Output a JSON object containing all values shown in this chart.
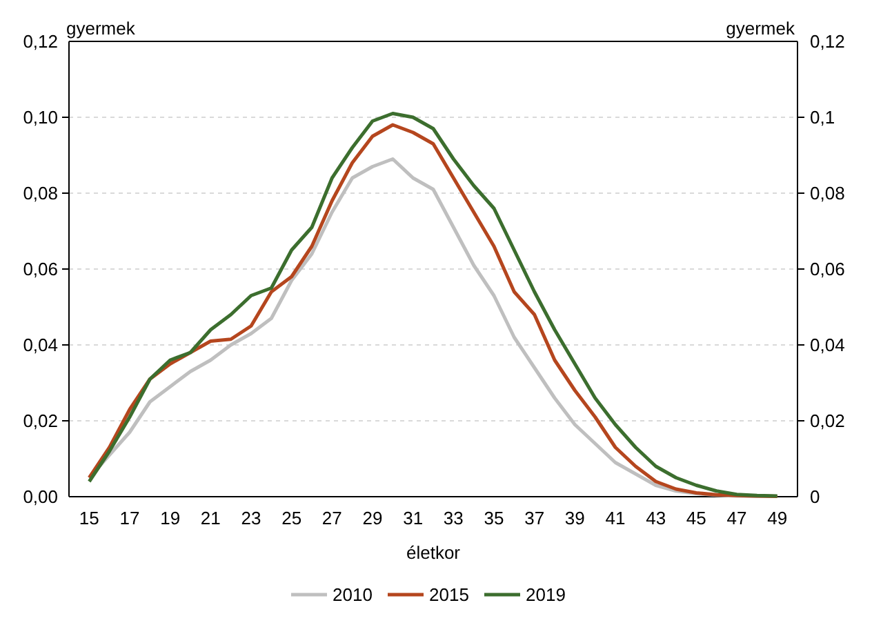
{
  "chart_data": {
    "type": "line",
    "xlabel": "életkor",
    "ylabel": "gyermek",
    "y2label": "gyermek",
    "x": [
      15,
      16,
      17,
      18,
      19,
      20,
      21,
      22,
      23,
      24,
      25,
      26,
      27,
      28,
      29,
      30,
      31,
      32,
      33,
      34,
      35,
      36,
      37,
      38,
      39,
      40,
      41,
      42,
      43,
      44,
      45,
      46,
      47,
      48,
      49
    ],
    "xlim": [
      14,
      50
    ],
    "xticks": [
      15,
      17,
      19,
      21,
      23,
      25,
      27,
      29,
      31,
      33,
      35,
      37,
      39,
      41,
      43,
      45,
      47,
      49
    ],
    "ylim": [
      0,
      0.12
    ],
    "yticks": [
      {
        "value": 0,
        "label": "0,00"
      },
      {
        "value": 0.02,
        "label": "0,02"
      },
      {
        "value": 0.04,
        "label": "0,04"
      },
      {
        "value": 0.06,
        "label": "0,06"
      },
      {
        "value": 0.08,
        "label": "0,08"
      },
      {
        "value": 0.1,
        "label": "0,10"
      },
      {
        "value": 0.12,
        "label": "0,12"
      }
    ],
    "y2lim": [
      0,
      0.12
    ],
    "y2ticks": [
      0,
      {
        "value": 0.02,
        "label": "0,02"
      },
      {
        "value": 0.04,
        "label": "0,04"
      },
      {
        "value": 0.06,
        "label": "0,06"
      },
      {
        "value": 0.08,
        "label": "0,08"
      },
      {
        "value": 0.1,
        "label": "0,1"
      },
      {
        "value": 0.12,
        "label": "0,12"
      }
    ],
    "grid": "y",
    "legend": "bottom",
    "line_style": "solid",
    "marker": "none",
    "series": [
      {
        "name": "2010",
        "color": "#bfbfbf",
        "values": [
          0.005,
          0.011,
          0.017,
          0.025,
          0.029,
          0.033,
          0.036,
          0.04,
          0.043,
          0.047,
          0.057,
          0.064,
          0.075,
          0.084,
          0.087,
          0.089,
          0.084,
          0.081,
          0.071,
          0.061,
          0.053,
          0.042,
          0.034,
          0.026,
          0.019,
          0.014,
          0.009,
          0.006,
          0.003,
          0.0015,
          0.0008,
          0.0004,
          0.0002,
          0.0001,
          0.0001
        ]
      },
      {
        "name": "2015",
        "color": "#b5461e",
        "values": [
          0.005,
          0.013,
          0.023,
          0.031,
          0.035,
          0.038,
          0.041,
          0.0415,
          0.045,
          0.054,
          0.058,
          0.066,
          0.078,
          0.088,
          0.095,
          0.098,
          0.096,
          0.093,
          0.084,
          0.075,
          0.066,
          0.054,
          0.048,
          0.036,
          0.028,
          0.021,
          0.013,
          0.008,
          0.004,
          0.002,
          0.001,
          0.0005,
          0.0003,
          0.0002,
          0.0001
        ]
      },
      {
        "name": "2019",
        "color": "#3c6e2e",
        "values": [
          0.004,
          0.012,
          0.021,
          0.031,
          0.036,
          0.038,
          0.044,
          0.048,
          0.053,
          0.055,
          0.065,
          0.071,
          0.084,
          0.092,
          0.099,
          0.101,
          0.1,
          0.097,
          0.089,
          0.082,
          0.076,
          0.065,
          0.054,
          0.044,
          0.035,
          0.026,
          0.019,
          0.013,
          0.008,
          0.005,
          0.003,
          0.0015,
          0.0006,
          0.0003,
          0.0002
        ]
      }
    ]
  }
}
